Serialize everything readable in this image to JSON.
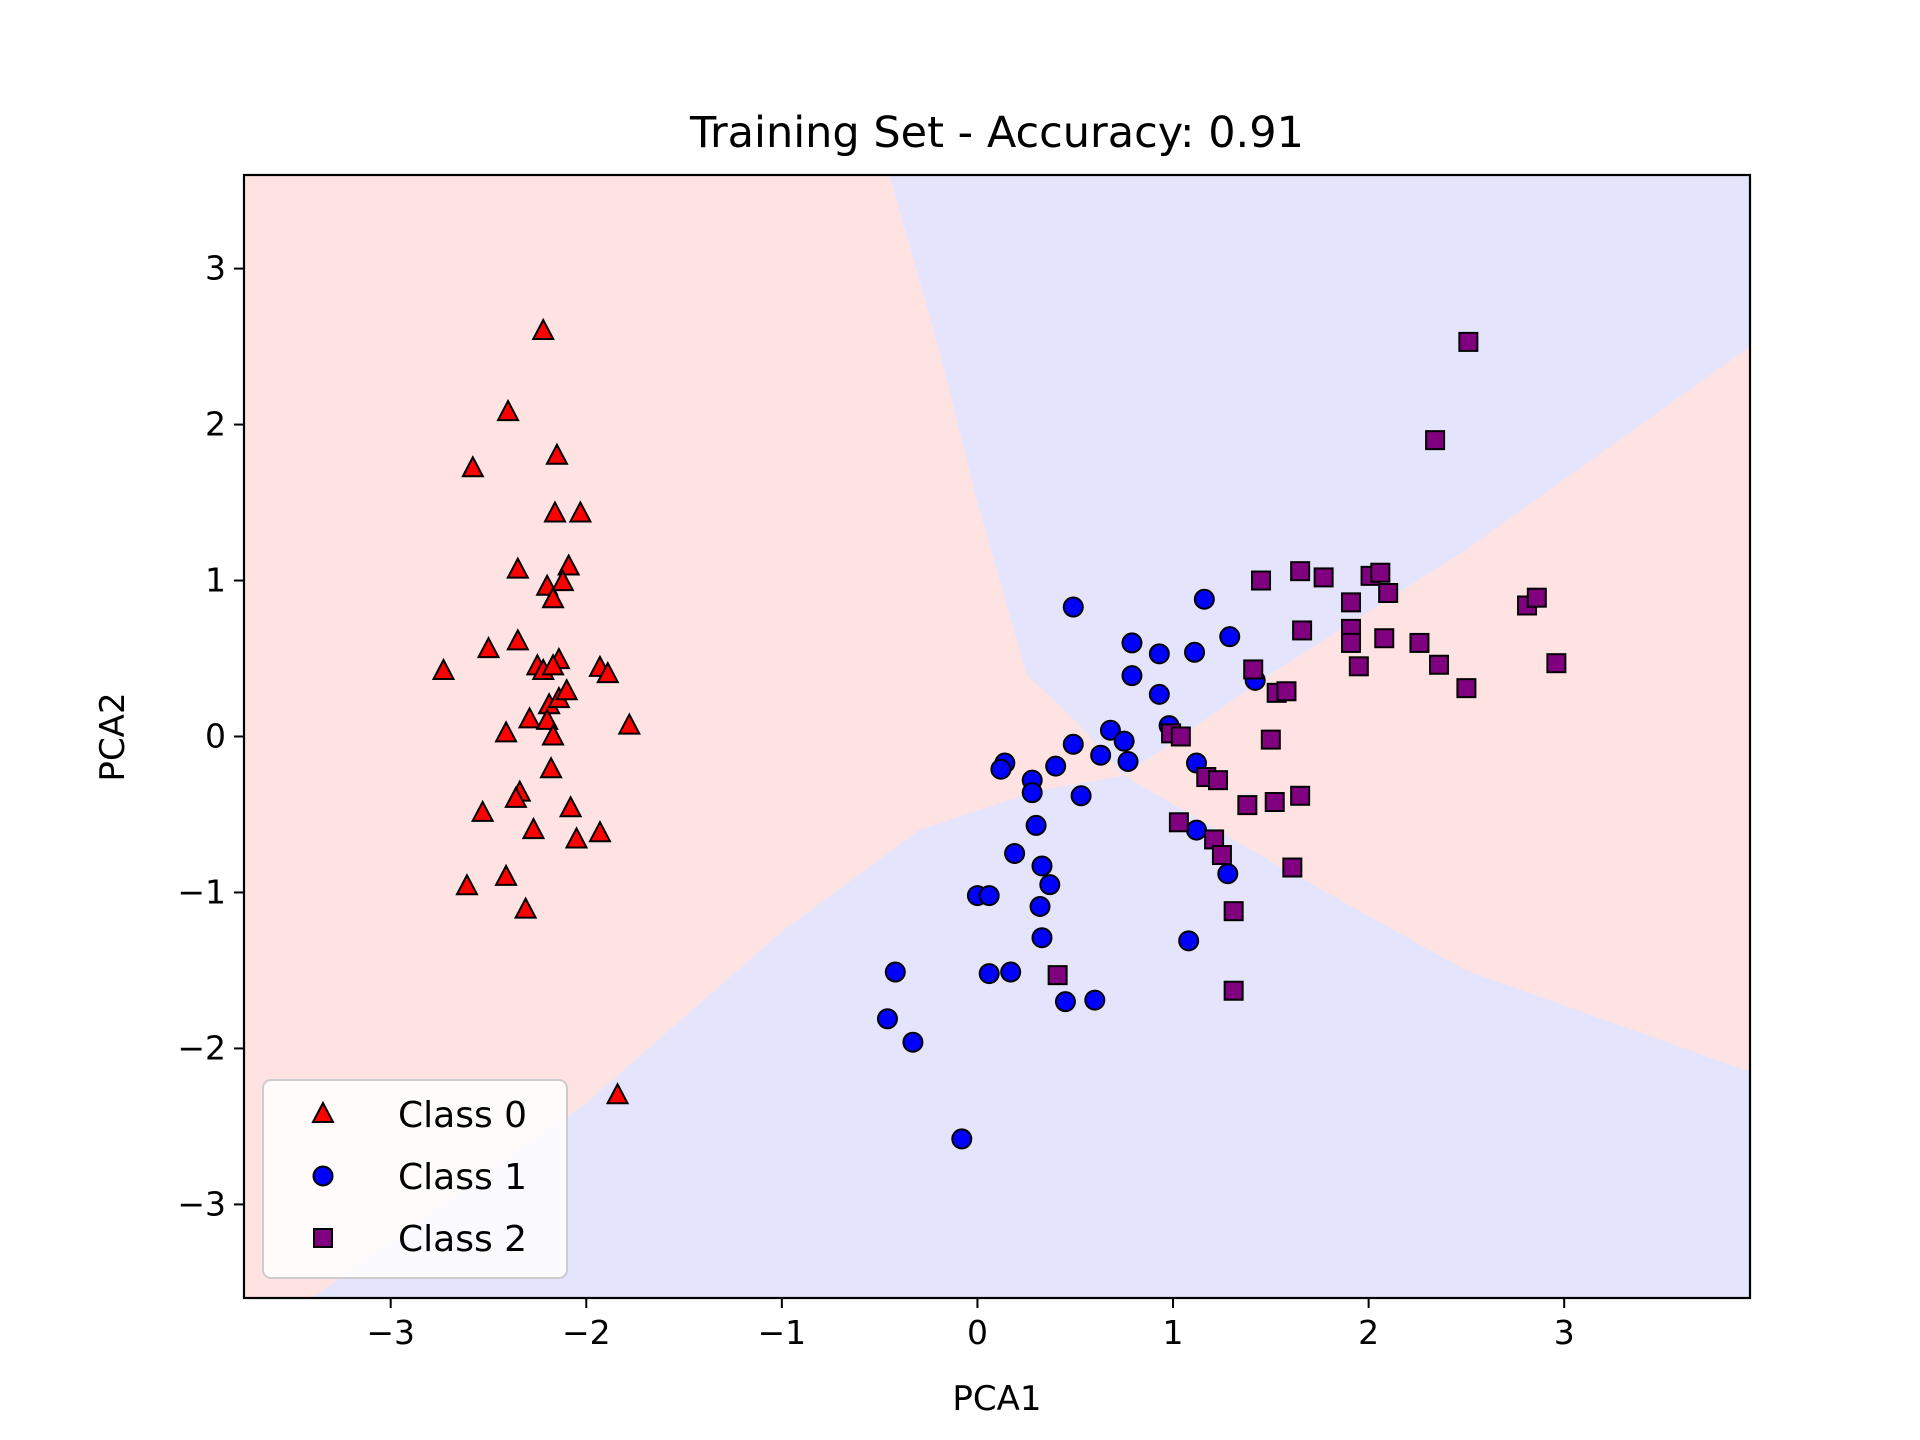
{
  "chart_data": {
    "type": "scatter",
    "title": "Training Set - Accuracy: 0.91",
    "xlabel": "PCA1",
    "ylabel": "PCA2",
    "xlim": [
      -3.75,
      3.95
    ],
    "ylim": [
      -3.6,
      3.6
    ],
    "xticks": [
      -3,
      -2,
      -1,
      0,
      1,
      2,
      3
    ],
    "yticks": [
      -3,
      -2,
      -1,
      0,
      1,
      2,
      3
    ],
    "grid": false,
    "legend_position": "lower-left",
    "background_regions": [
      {
        "class": "Class 0",
        "color": "#ffe3e3"
      },
      {
        "class": "Class 1",
        "color": "#e4e4fc"
      },
      {
        "class": "Class 2",
        "color": "#ffe3e3"
      }
    ],
    "series": [
      {
        "name": "Class 0",
        "marker": "triangle",
        "color": "#ff0000",
        "points": [
          [
            -2.22,
            2.6
          ],
          [
            -2.4,
            2.08
          ],
          [
            -2.58,
            1.72
          ],
          [
            -2.15,
            1.8
          ],
          [
            -2.16,
            1.43
          ],
          [
            -2.03,
            1.43
          ],
          [
            -2.35,
            1.07
          ],
          [
            -2.09,
            1.09
          ],
          [
            -2.2,
            0.96
          ],
          [
            -2.12,
            0.99
          ],
          [
            -2.17,
            0.88
          ],
          [
            -2.5,
            0.56
          ],
          [
            -2.35,
            0.61
          ],
          [
            -2.25,
            0.45
          ],
          [
            -2.22,
            0.42
          ],
          [
            -2.14,
            0.49
          ],
          [
            -2.17,
            0.45
          ],
          [
            -1.93,
            0.44
          ],
          [
            -1.89,
            0.4
          ],
          [
            -2.73,
            0.42
          ],
          [
            -2.19,
            0.2
          ],
          [
            -2.14,
            0.24
          ],
          [
            -2.1,
            0.29
          ],
          [
            -2.29,
            0.11
          ],
          [
            -2.2,
            0.1
          ],
          [
            -2.41,
            0.02
          ],
          [
            -2.17,
            0.0
          ],
          [
            -1.78,
            0.07
          ],
          [
            -2.18,
            -0.21
          ],
          [
            -2.34,
            -0.36
          ],
          [
            -2.36,
            -0.4
          ],
          [
            -2.53,
            -0.49
          ],
          [
            -2.08,
            -0.46
          ],
          [
            -2.27,
            -0.6
          ],
          [
            -2.05,
            -0.66
          ],
          [
            -1.93,
            -0.62
          ],
          [
            -2.61,
            -0.96
          ],
          [
            -2.41,
            -0.9
          ],
          [
            -2.31,
            -1.11
          ],
          [
            -1.84,
            -2.3
          ]
        ]
      },
      {
        "name": "Class 1",
        "marker": "circle",
        "color": "#0000ff",
        "points": [
          [
            0.49,
            0.83
          ],
          [
            1.16,
            0.88
          ],
          [
            0.79,
            0.6
          ],
          [
            0.93,
            0.53
          ],
          [
            1.11,
            0.54
          ],
          [
            1.29,
            0.64
          ],
          [
            0.79,
            0.39
          ],
          [
            0.93,
            0.27
          ],
          [
            1.42,
            0.36
          ],
          [
            0.98,
            0.07
          ],
          [
            0.68,
            0.04
          ],
          [
            0.75,
            -0.03
          ],
          [
            0.49,
            -0.05
          ],
          [
            0.63,
            -0.12
          ],
          [
            0.77,
            -0.16
          ],
          [
            0.53,
            -0.38
          ],
          [
            0.4,
            -0.19
          ],
          [
            0.14,
            -0.17
          ],
          [
            0.12,
            -0.21
          ],
          [
            0.28,
            -0.28
          ],
          [
            0.28,
            -0.36
          ],
          [
            1.12,
            -0.17
          ],
          [
            0.3,
            -0.57
          ],
          [
            1.12,
            -0.6
          ],
          [
            0.19,
            -0.75
          ],
          [
            0.33,
            -0.83
          ],
          [
            0.37,
            -0.95
          ],
          [
            1.28,
            -0.88
          ],
          [
            0.0,
            -1.02
          ],
          [
            0.06,
            -1.02
          ],
          [
            0.32,
            -1.09
          ],
          [
            0.33,
            -1.29
          ],
          [
            1.08,
            -1.31
          ],
          [
            -0.42,
            -1.51
          ],
          [
            0.06,
            -1.52
          ],
          [
            0.17,
            -1.51
          ],
          [
            0.45,
            -1.7
          ],
          [
            0.6,
            -1.69
          ],
          [
            -0.46,
            -1.81
          ],
          [
            -0.33,
            -1.96
          ],
          [
            -0.08,
            -2.58
          ]
        ]
      },
      {
        "name": "Class 2",
        "marker": "square",
        "color": "#800080",
        "points": [
          [
            2.51,
            2.53
          ],
          [
            2.34,
            1.9
          ],
          [
            1.45,
            1.0
          ],
          [
            1.65,
            1.06
          ],
          [
            1.77,
            1.02
          ],
          [
            2.01,
            1.03
          ],
          [
            2.06,
            1.05
          ],
          [
            2.1,
            0.92
          ],
          [
            1.91,
            0.86
          ],
          [
            2.81,
            0.84
          ],
          [
            2.86,
            0.89
          ],
          [
            1.91,
            0.69
          ],
          [
            1.66,
            0.68
          ],
          [
            1.91,
            0.6
          ],
          [
            2.08,
            0.63
          ],
          [
            2.26,
            0.6
          ],
          [
            1.95,
            0.45
          ],
          [
            2.36,
            0.46
          ],
          [
            2.96,
            0.47
          ],
          [
            1.41,
            0.43
          ],
          [
            1.53,
            0.28
          ],
          [
            1.58,
            0.29
          ],
          [
            2.5,
            0.31
          ],
          [
            0.99,
            0.02
          ],
          [
            1.04,
            0.0
          ],
          [
            1.5,
            -0.02
          ],
          [
            1.17,
            -0.26
          ],
          [
            1.23,
            -0.28
          ],
          [
            1.65,
            -0.38
          ],
          [
            1.38,
            -0.44
          ],
          [
            1.52,
            -0.42
          ],
          [
            1.03,
            -0.55
          ],
          [
            1.21,
            -0.66
          ],
          [
            1.25,
            -0.76
          ],
          [
            1.61,
            -0.84
          ],
          [
            1.31,
            -1.12
          ],
          [
            0.41,
            -1.53
          ],
          [
            1.31,
            -1.63
          ]
        ]
      }
    ]
  }
}
